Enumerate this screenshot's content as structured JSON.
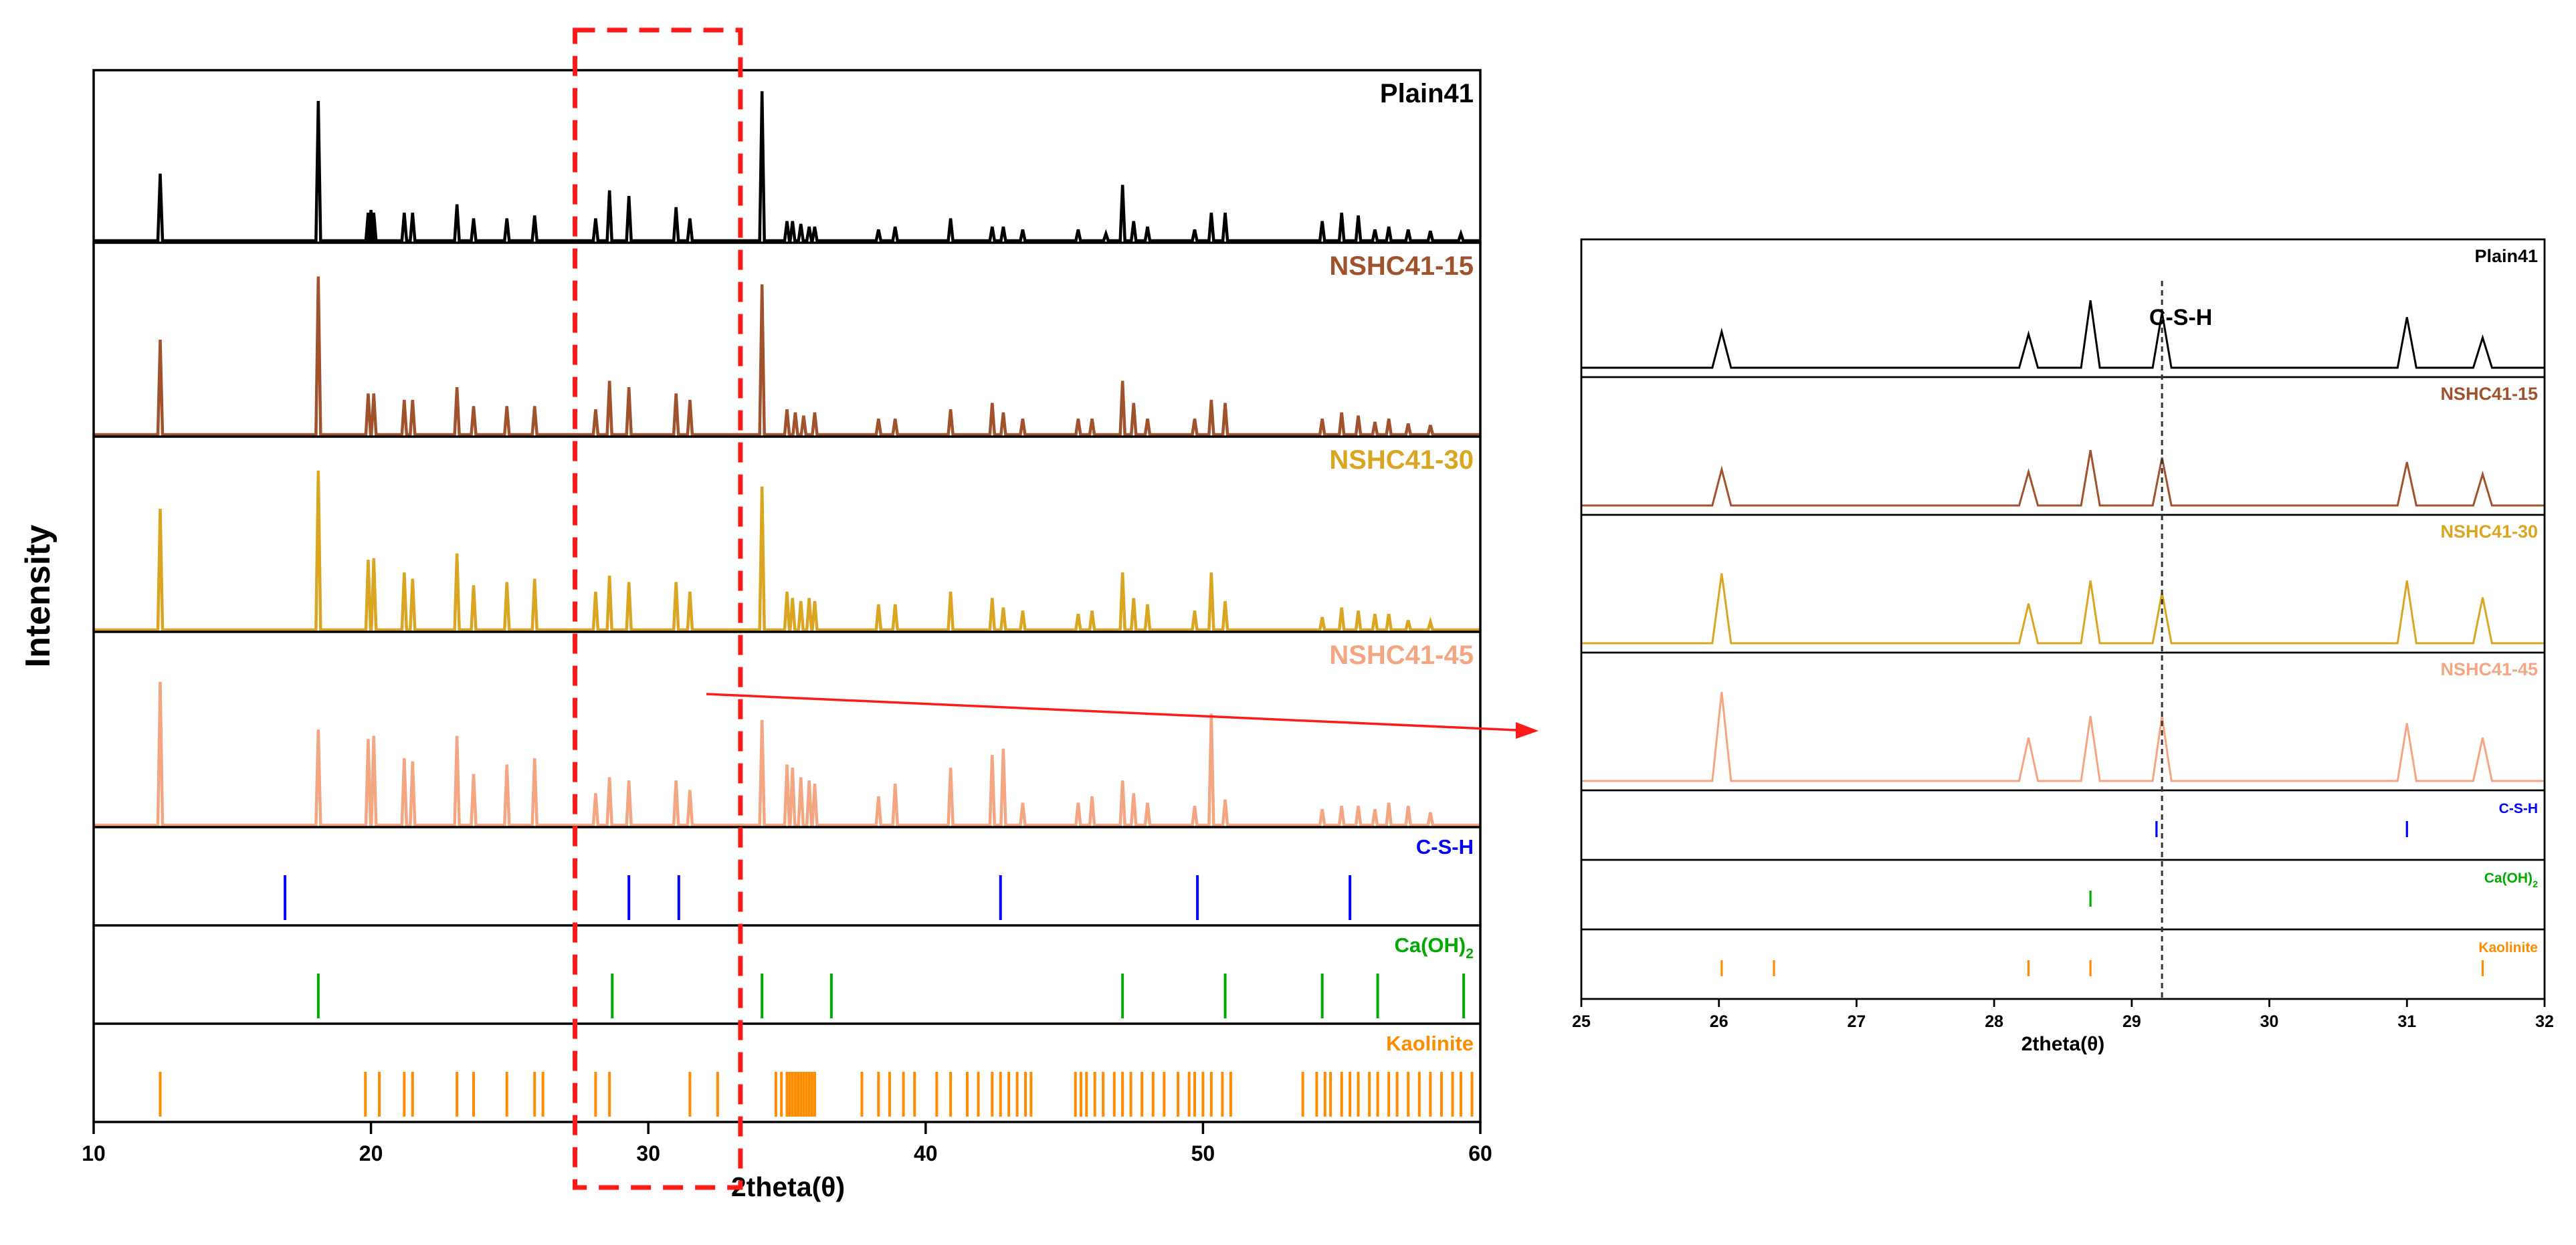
{
  "chart_data": [
    {
      "type": "line",
      "title": "",
      "xlabel": "2theta(θ)",
      "ylabel": "Intensity",
      "xlim": [
        10,
        60
      ],
      "xticks": [
        10,
        20,
        30,
        40,
        50,
        60
      ],
      "grid": false,
      "highlight_region": [
        27.5,
        33.2
      ],
      "series": [
        {
          "name": "Plain41",
          "color": "#000000",
          "kind": "pattern",
          "peaks": [
            [
              12.4,
              0.48
            ],
            [
              18.1,
              1.0
            ],
            [
              19.9,
              0.2
            ],
            [
              20.0,
              0.22
            ],
            [
              20.1,
              0.2
            ],
            [
              21.2,
              0.2
            ],
            [
              21.5,
              0.2
            ],
            [
              23.1,
              0.26
            ],
            [
              23.7,
              0.16
            ],
            [
              24.9,
              0.16
            ],
            [
              25.9,
              0.18
            ],
            [
              28.1,
              0.16
            ],
            [
              28.6,
              0.36
            ],
            [
              29.3,
              0.32
            ],
            [
              31.0,
              0.24
            ],
            [
              31.5,
              0.16
            ],
            [
              34.1,
              1.07
            ],
            [
              35.0,
              0.14
            ],
            [
              35.2,
              0.14
            ],
            [
              35.5,
              0.12
            ],
            [
              35.8,
              0.1
            ],
            [
              36.0,
              0.1
            ],
            [
              38.3,
              0.08
            ],
            [
              38.9,
              0.1
            ],
            [
              40.9,
              0.16
            ],
            [
              42.4,
              0.1
            ],
            [
              42.8,
              0.1
            ],
            [
              43.5,
              0.08
            ],
            [
              45.5,
              0.08
            ],
            [
              46.5,
              0.05
            ],
            [
              47.1,
              0.4
            ],
            [
              47.5,
              0.14
            ],
            [
              48.0,
              0.1
            ],
            [
              49.7,
              0.08
            ],
            [
              50.3,
              0.2
            ],
            [
              50.8,
              0.2
            ],
            [
              54.3,
              0.14
            ],
            [
              55.0,
              0.2
            ],
            [
              55.6,
              0.18
            ],
            [
              56.2,
              0.08
            ],
            [
              56.7,
              0.1
            ],
            [
              57.4,
              0.08
            ],
            [
              58.2,
              0.07
            ],
            [
              59.3,
              0.05
            ]
          ]
        },
        {
          "name": "NSHC41-15",
          "color": "#a0522d",
          "kind": "pattern",
          "peaks": [
            [
              12.4,
              0.6
            ],
            [
              18.1,
              1.0
            ],
            [
              19.9,
              0.26
            ],
            [
              20.1,
              0.26
            ],
            [
              21.2,
              0.22
            ],
            [
              21.5,
              0.22
            ],
            [
              23.1,
              0.3
            ],
            [
              23.7,
              0.18
            ],
            [
              24.9,
              0.18
            ],
            [
              25.9,
              0.18
            ],
            [
              28.1,
              0.16
            ],
            [
              28.6,
              0.34
            ],
            [
              29.3,
              0.3
            ],
            [
              31.0,
              0.26
            ],
            [
              31.5,
              0.22
            ],
            [
              34.1,
              0.95
            ],
            [
              35.0,
              0.16
            ],
            [
              35.3,
              0.14
            ],
            [
              35.6,
              0.12
            ],
            [
              36.0,
              0.14
            ],
            [
              38.3,
              0.1
            ],
            [
              38.9,
              0.1
            ],
            [
              40.9,
              0.16
            ],
            [
              42.4,
              0.2
            ],
            [
              42.8,
              0.14
            ],
            [
              43.5,
              0.1
            ],
            [
              45.5,
              0.1
            ],
            [
              46.0,
              0.1
            ],
            [
              47.1,
              0.34
            ],
            [
              47.5,
              0.2
            ],
            [
              48.0,
              0.1
            ],
            [
              49.7,
              0.1
            ],
            [
              50.3,
              0.22
            ],
            [
              50.8,
              0.2
            ],
            [
              54.3,
              0.1
            ],
            [
              55.0,
              0.14
            ],
            [
              55.6,
              0.12
            ],
            [
              56.2,
              0.08
            ],
            [
              56.7,
              0.1
            ],
            [
              57.4,
              0.07
            ],
            [
              58.2,
              0.06
            ]
          ]
        },
        {
          "name": "NSHC41-30",
          "color": "#daa520",
          "kind": "pattern",
          "peaks": [
            [
              12.4,
              0.76
            ],
            [
              18.1,
              1.0
            ],
            [
              19.9,
              0.44
            ],
            [
              20.1,
              0.45
            ],
            [
              21.2,
              0.36
            ],
            [
              21.5,
              0.32
            ],
            [
              23.1,
              0.48
            ],
            [
              23.7,
              0.28
            ],
            [
              24.9,
              0.3
            ],
            [
              25.9,
              0.32
            ],
            [
              28.1,
              0.24
            ],
            [
              28.6,
              0.34
            ],
            [
              29.3,
              0.3
            ],
            [
              31.0,
              0.3
            ],
            [
              31.5,
              0.24
            ],
            [
              34.1,
              0.9
            ],
            [
              35.0,
              0.24
            ],
            [
              35.2,
              0.2
            ],
            [
              35.5,
              0.18
            ],
            [
              35.8,
              0.2
            ],
            [
              36.0,
              0.18
            ],
            [
              38.3,
              0.16
            ],
            [
              38.9,
              0.16
            ],
            [
              40.9,
              0.24
            ],
            [
              42.4,
              0.2
            ],
            [
              42.8,
              0.14
            ],
            [
              43.5,
              0.12
            ],
            [
              45.5,
              0.1
            ],
            [
              46.0,
              0.12
            ],
            [
              47.1,
              0.36
            ],
            [
              47.5,
              0.2
            ],
            [
              48.0,
              0.16
            ],
            [
              49.7,
              0.12
            ],
            [
              50.3,
              0.36
            ],
            [
              50.8,
              0.18
            ],
            [
              54.3,
              0.08
            ],
            [
              55.0,
              0.14
            ],
            [
              55.6,
              0.12
            ],
            [
              56.2,
              0.1
            ],
            [
              56.7,
              0.1
            ],
            [
              57.4,
              0.06
            ],
            [
              58.2,
              0.05
            ]
          ]
        },
        {
          "name": "NSHC41-45",
          "color": "#f4a582",
          "kind": "pattern",
          "peaks": [
            [
              12.4,
              0.9
            ],
            [
              18.1,
              0.6
            ],
            [
              19.9,
              0.54
            ],
            [
              20.1,
              0.56
            ],
            [
              21.2,
              0.42
            ],
            [
              21.5,
              0.4
            ],
            [
              23.1,
              0.56
            ],
            [
              23.7,
              0.32
            ],
            [
              24.9,
              0.38
            ],
            [
              25.9,
              0.42
            ],
            [
              28.1,
              0.2
            ],
            [
              28.6,
              0.3
            ],
            [
              29.3,
              0.28
            ],
            [
              31.0,
              0.28
            ],
            [
              31.5,
              0.22
            ],
            [
              34.1,
              0.66
            ],
            [
              35.0,
              0.38
            ],
            [
              35.2,
              0.36
            ],
            [
              35.5,
              0.3
            ],
            [
              35.8,
              0.28
            ],
            [
              36.0,
              0.26
            ],
            [
              38.3,
              0.18
            ],
            [
              38.9,
              0.26
            ],
            [
              40.9,
              0.36
            ],
            [
              42.4,
              0.44
            ],
            [
              42.8,
              0.48
            ],
            [
              43.5,
              0.14
            ],
            [
              45.5,
              0.14
            ],
            [
              46.0,
              0.18
            ],
            [
              47.1,
              0.28
            ],
            [
              47.5,
              0.2
            ],
            [
              48.0,
              0.14
            ],
            [
              49.7,
              0.12
            ],
            [
              50.3,
              0.7
            ],
            [
              50.8,
              0.16
            ],
            [
              54.3,
              0.1
            ],
            [
              55.0,
              0.12
            ],
            [
              55.6,
              0.12
            ],
            [
              56.2,
              0.1
            ],
            [
              56.7,
              0.14
            ],
            [
              57.4,
              0.12
            ],
            [
              58.2,
              0.08
            ]
          ]
        },
        {
          "name": "C-S-H",
          "color": "#0000ff",
          "kind": "reference",
          "peaks": [
            16.9,
            29.3,
            31.1,
            42.7,
            49.8,
            55.3
          ]
        },
        {
          "name": "Ca(OH)2",
          "label_main": "Ca(OH)",
          "label_sub": "2",
          "color": "#00aa00",
          "kind": "reference",
          "peaks": [
            18.1,
            28.7,
            34.1,
            36.6,
            47.1,
            50.8,
            54.3,
            56.3,
            59.4
          ]
        },
        {
          "name": "Kaolinite",
          "color": "#ff8c00",
          "kind": "reference",
          "peaks": [
            12.4,
            19.8,
            20.3,
            21.2,
            21.5,
            23.1,
            23.7,
            24.9,
            25.9,
            26.2,
            28.1,
            28.6,
            31.5,
            32.5,
            34.6,
            34.8,
            35.0,
            35.1,
            35.2,
            35.3,
            35.4,
            35.5,
            35.6,
            35.7,
            35.8,
            35.9,
            36.0,
            37.7,
            38.3,
            38.7,
            39.2,
            39.6,
            40.4,
            40.9,
            41.5,
            41.9,
            42.4,
            42.7,
            43.0,
            43.3,
            43.6,
            43.8,
            45.4,
            45.6,
            45.8,
            46.1,
            46.4,
            46.8,
            47.1,
            47.4,
            47.8,
            48.2,
            48.6,
            49.1,
            49.5,
            49.7,
            50.0,
            50.3,
            50.7,
            51.0,
            53.6,
            54.1,
            54.4,
            54.6,
            55.0,
            55.3,
            55.6,
            56.0,
            56.3,
            56.7,
            57.0,
            57.4,
            57.8,
            58.2,
            58.6,
            59.0,
            59.3,
            59.7
          ]
        }
      ]
    },
    {
      "type": "line",
      "title": "",
      "xlabel": "2theta(θ)",
      "ylabel": "",
      "xlim": [
        25,
        32
      ],
      "xticks": [
        25,
        26,
        27,
        28,
        29,
        30,
        31,
        32
      ],
      "grid": false,
      "annotation": {
        "text": "C-S-H",
        "x": 29.22
      },
      "series": [
        {
          "name": "Plain41",
          "color": "#000000",
          "kind": "pattern",
          "peaks": [
            [
              26.02,
              0.3
            ],
            [
              28.25,
              0.28
            ],
            [
              28.7,
              0.56
            ],
            [
              29.22,
              0.46
            ],
            [
              31.0,
              0.42
            ],
            [
              31.55,
              0.25
            ]
          ]
        },
        {
          "name": "NSHC41-15",
          "color": "#a0522d",
          "kind": "pattern",
          "peaks": [
            [
              26.02,
              0.3
            ],
            [
              28.25,
              0.28
            ],
            [
              28.7,
              0.46
            ],
            [
              29.22,
              0.4
            ],
            [
              31.0,
              0.36
            ],
            [
              31.55,
              0.26
            ]
          ]
        },
        {
          "name": "NSHC41-30",
          "color": "#daa520",
          "kind": "pattern",
          "peaks": [
            [
              26.02,
              0.58
            ],
            [
              28.25,
              0.33
            ],
            [
              28.7,
              0.52
            ],
            [
              29.22,
              0.42
            ],
            [
              31.0,
              0.52
            ],
            [
              31.55,
              0.38
            ]
          ]
        },
        {
          "name": "NSHC41-45",
          "color": "#f4a582",
          "kind": "pattern",
          "peaks": [
            [
              26.02,
              0.74
            ],
            [
              28.25,
              0.36
            ],
            [
              28.7,
              0.54
            ],
            [
              29.22,
              0.54
            ],
            [
              31.0,
              0.48
            ],
            [
              31.55,
              0.36
            ]
          ]
        },
        {
          "name": "C-S-H",
          "color": "#0000ff",
          "kind": "reference",
          "peaks": [
            29.18,
            31.0
          ]
        },
        {
          "name": "Ca(OH)2",
          "label_main": "Ca(OH)",
          "label_sub": "2",
          "color": "#00aa00",
          "kind": "reference",
          "peaks": [
            28.7
          ]
        },
        {
          "name": "Kaolinite",
          "color": "#ff8c00",
          "kind": "reference",
          "peaks": [
            26.02,
            26.4,
            28.25,
            28.7,
            31.55
          ]
        }
      ]
    }
  ]
}
